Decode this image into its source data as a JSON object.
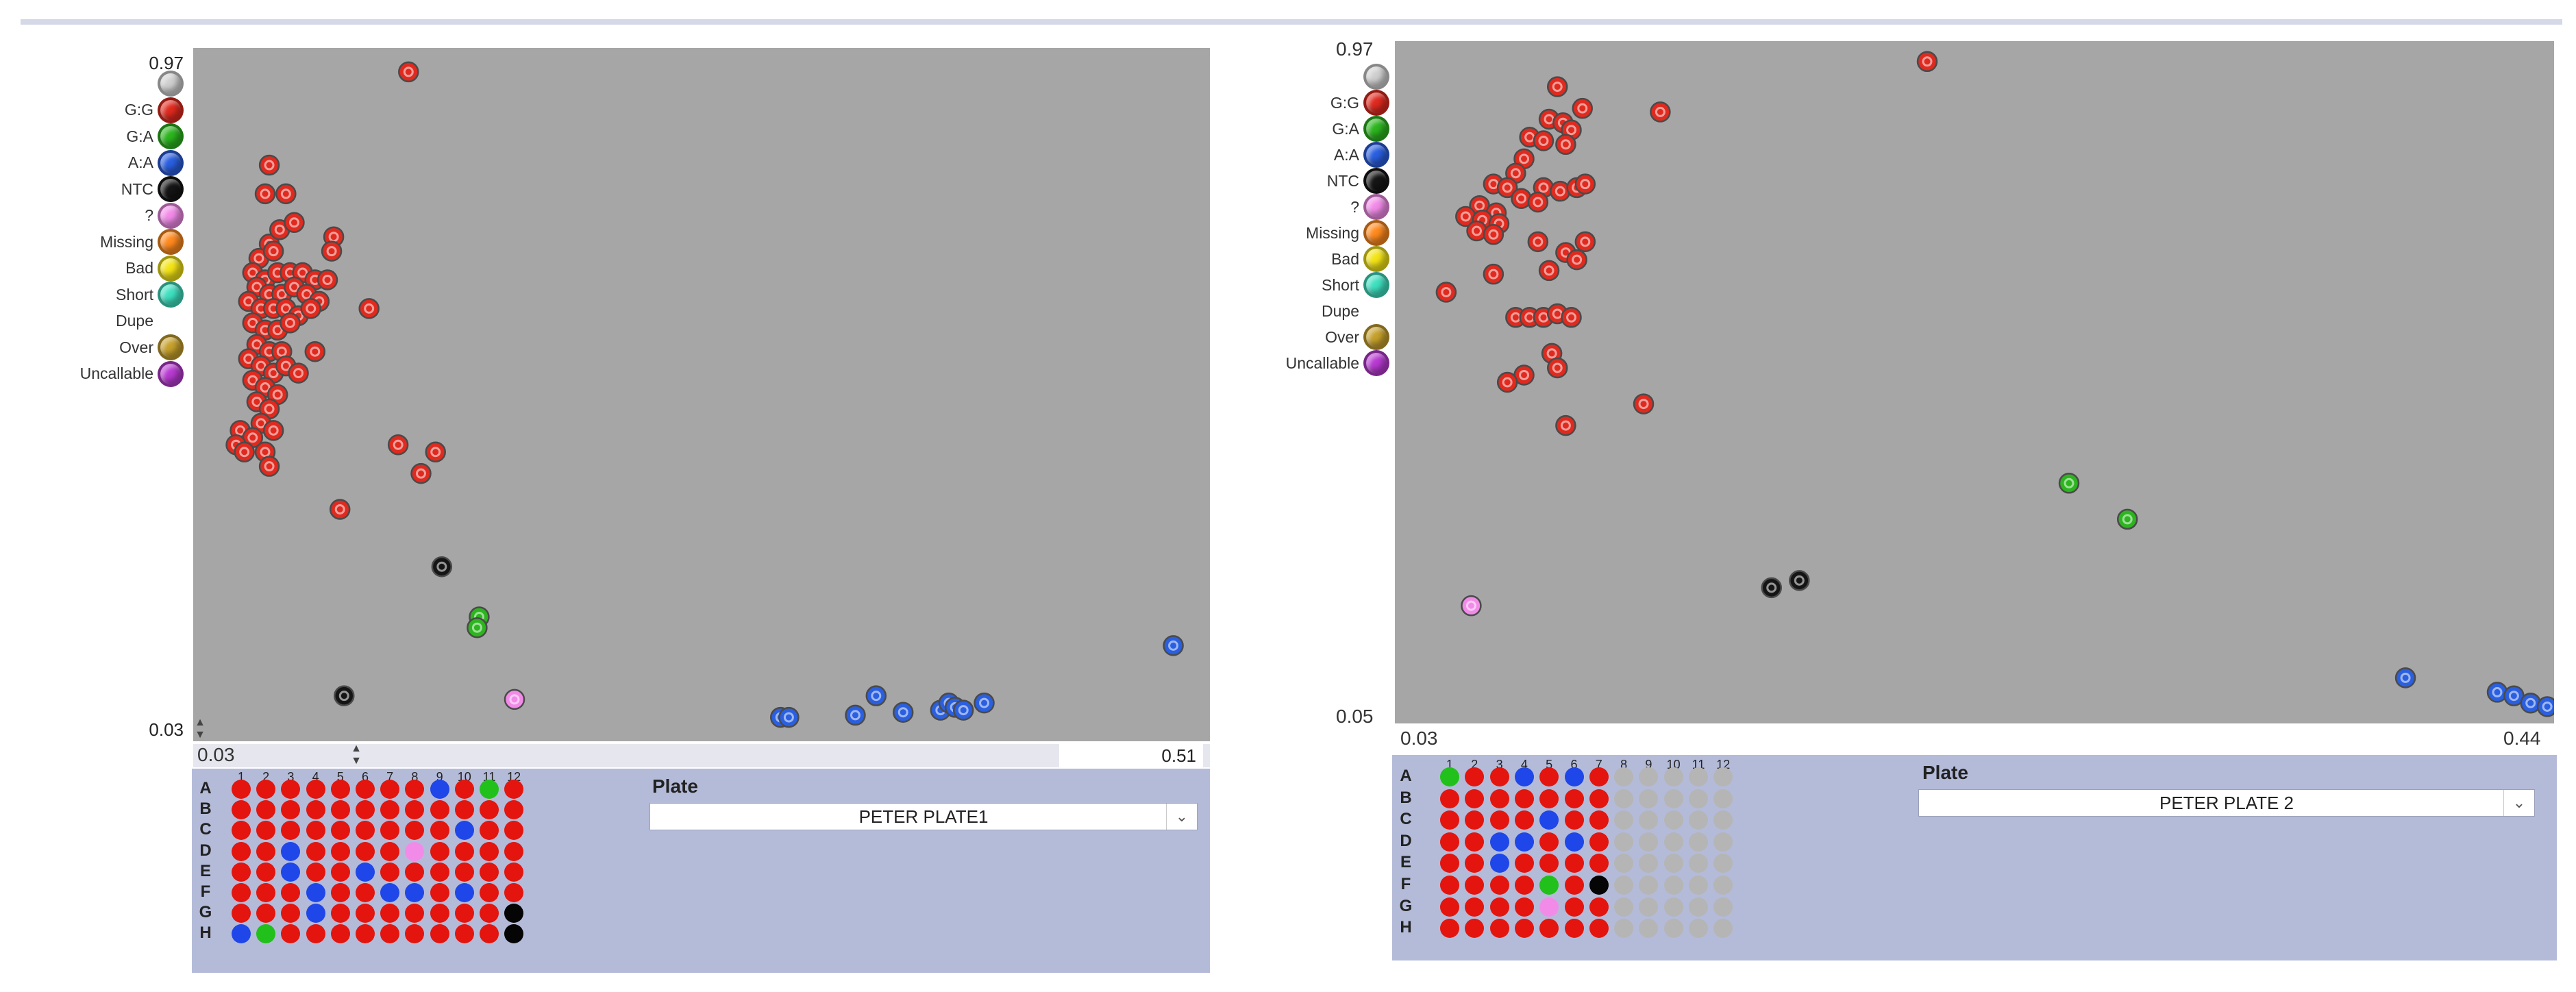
{
  "legend": {
    "labels": [
      "",
      "G:G",
      "G:A",
      "A:A",
      "NTC",
      "?",
      "Missing",
      "Bad",
      "Short",
      "Dupe",
      "Over",
      "Uncallable"
    ],
    "colors": [
      "#cfcfcf",
      "#e02a1f",
      "#2cb51e",
      "#2a5fe0",
      "#151515",
      "#f28be8",
      "#ff8a1e",
      "#f3e416",
      "#3ee0c0",
      "",
      "#c6a02c",
      "#b83ad2"
    ]
  },
  "well_colors": {
    "R": "#e3150e",
    "B": "#1f46e8",
    "G": "#22c01b",
    "K": "#050505",
    "P": "#f28be8",
    "E": "#b5b5b5"
  },
  "panels": [
    {
      "ymax_text": "0.97",
      "ymin_text": "0.03",
      "xmin_text": "0.03",
      "xmax_text": "0.51",
      "plate_label": "Plate",
      "plate_value": "PETER PLATE1",
      "plate_cols": [
        "1",
        "2",
        "3",
        "4",
        "5",
        "6",
        "7",
        "8",
        "9",
        "10",
        "11",
        "12"
      ],
      "plate_rows": [
        "A",
        "B",
        "C",
        "D",
        "E",
        "F",
        "G",
        "H"
      ],
      "plate_wells": [
        "RRRRRRRRBRGR",
        "RRRRRRRRRRRR",
        "RRRRRRRRRBRR",
        "RRBRRRRPRRRR",
        "RRBRRBRRRRRR",
        "RRRBRRBBRBRR",
        "RRRBRRRRRRRK",
        "BGRRRRRRRRRK"
      ],
      "chart_data": {
        "type": "scatter",
        "xlim": [
          0.03,
          0.51
        ],
        "ylim": [
          0.03,
          0.97
        ],
        "series": [
          {
            "name": "G:G",
            "color": "#e02a1f",
            "points": [
              [
                0.129,
                0.95
              ],
              [
                0.062,
                0.82
              ],
              [
                0.06,
                0.78
              ],
              [
                0.07,
                0.78
              ],
              [
                0.062,
                0.71
              ],
              [
                0.067,
                0.73
              ],
              [
                0.074,
                0.74
              ],
              [
                0.093,
                0.72
              ],
              [
                0.092,
                0.7
              ],
              [
                0.057,
                0.69
              ],
              [
                0.064,
                0.7
              ],
              [
                0.054,
                0.67
              ],
              [
                0.06,
                0.66
              ],
              [
                0.066,
                0.67
              ],
              [
                0.072,
                0.67
              ],
              [
                0.078,
                0.67
              ],
              [
                0.084,
                0.66
              ],
              [
                0.09,
                0.66
              ],
              [
                0.056,
                0.65
              ],
              [
                0.062,
                0.64
              ],
              [
                0.068,
                0.64
              ],
              [
                0.074,
                0.65
              ],
              [
                0.08,
                0.64
              ],
              [
                0.086,
                0.63
              ],
              [
                0.052,
                0.63
              ],
              [
                0.058,
                0.62
              ],
              [
                0.064,
                0.62
              ],
              [
                0.07,
                0.62
              ],
              [
                0.076,
                0.61
              ],
              [
                0.082,
                0.62
              ],
              [
                0.054,
                0.6
              ],
              [
                0.06,
                0.59
              ],
              [
                0.066,
                0.59
              ],
              [
                0.072,
                0.6
              ],
              [
                0.11,
                0.62
              ],
              [
                0.056,
                0.57
              ],
              [
                0.062,
                0.56
              ],
              [
                0.068,
                0.56
              ],
              [
                0.052,
                0.55
              ],
              [
                0.058,
                0.54
              ],
              [
                0.064,
                0.53
              ],
              [
                0.07,
                0.54
              ],
              [
                0.084,
                0.56
              ],
              [
                0.054,
                0.52
              ],
              [
                0.06,
                0.51
              ],
              [
                0.066,
                0.5
              ],
              [
                0.076,
                0.53
              ],
              [
                0.056,
                0.49
              ],
              [
                0.062,
                0.48
              ],
              [
                0.058,
                0.46
              ],
              [
                0.064,
                0.45
              ],
              [
                0.048,
                0.45
              ],
              [
                0.054,
                0.44
              ],
              [
                0.046,
                0.43
              ],
              [
                0.05,
                0.42
              ],
              [
                0.06,
                0.42
              ],
              [
                0.062,
                0.4
              ],
              [
                0.124,
                0.43
              ],
              [
                0.142,
                0.42
              ],
              [
                0.135,
                0.39
              ],
              [
                0.096,
                0.34
              ]
            ]
          },
          {
            "name": "G:A",
            "color": "#2cb51e",
            "points": [
              [
                0.163,
                0.19
              ],
              [
                0.162,
                0.175
              ]
            ]
          },
          {
            "name": "A:A",
            "color": "#2a5fe0",
            "points": [
              [
                0.497,
                0.15
              ],
              [
                0.308,
                0.05
              ],
              [
                0.312,
                0.05
              ],
              [
                0.344,
                0.053
              ],
              [
                0.354,
                0.08
              ],
              [
                0.367,
                0.057
              ],
              [
                0.385,
                0.06
              ],
              [
                0.389,
                0.07
              ],
              [
                0.392,
                0.064
              ],
              [
                0.396,
                0.06
              ],
              [
                0.406,
                0.07
              ]
            ]
          },
          {
            "name": "NTC",
            "color": "#151515",
            "points": [
              [
                0.145,
                0.26
              ],
              [
                0.098,
                0.08
              ]
            ]
          },
          {
            "name": "?",
            "color": "#f28be8",
            "points": [
              [
                0.18,
                0.075
              ]
            ]
          }
        ]
      }
    },
    {
      "ymax_text": "0.97",
      "ymin_text": "0.05",
      "xmin_text": "0.03",
      "xmax_text": "0.44",
      "plate_label": "Plate",
      "plate_value": "PETER PLATE 2",
      "plate_cols": [
        "1",
        "2",
        "3",
        "4",
        "5",
        "6",
        "7",
        "8",
        "9",
        "10",
        "11",
        "12"
      ],
      "plate_rows": [
        "A",
        "B",
        "C",
        "D",
        "E",
        "F",
        "G",
        "H"
      ],
      "plate_wells": [
        "GRRBRBREEEEE",
        "RRRRRRREEEEE",
        "RRRRBRREEEEE",
        "RRBBRBREEEEE",
        "RRBRRRREEEEE",
        "RRRRGRKEEEEE",
        "RRRRPRREEEEE",
        "RRRRRRREEEEE"
      ],
      "chart_data": {
        "type": "scatter",
        "xlim": [
          0.03,
          0.44
        ],
        "ylim": [
          0.05,
          0.97
        ],
        "series": [
          {
            "name": "G:G",
            "color": "#e02a1f",
            "points": [
              [
                0.218,
                0.955
              ],
              [
                0.085,
                0.92
              ],
              [
                0.094,
                0.89
              ],
              [
                0.122,
                0.885
              ],
              [
                0.082,
                0.875
              ],
              [
                0.087,
                0.87
              ],
              [
                0.09,
                0.86
              ],
              [
                0.075,
                0.85
              ],
              [
                0.08,
                0.845
              ],
              [
                0.088,
                0.84
              ],
              [
                0.073,
                0.82
              ],
              [
                0.07,
                0.8
              ],
              [
                0.062,
                0.785
              ],
              [
                0.067,
                0.78
              ],
              [
                0.08,
                0.78
              ],
              [
                0.086,
                0.775
              ],
              [
                0.092,
                0.78
              ],
              [
                0.095,
                0.785
              ],
              [
                0.072,
                0.765
              ],
              [
                0.078,
                0.76
              ],
              [
                0.057,
                0.755
              ],
              [
                0.063,
                0.745
              ],
              [
                0.052,
                0.74
              ],
              [
                0.058,
                0.735
              ],
              [
                0.064,
                0.73
              ],
              [
                0.056,
                0.72
              ],
              [
                0.062,
                0.715
              ],
              [
                0.078,
                0.705
              ],
              [
                0.095,
                0.705
              ],
              [
                0.088,
                0.69
              ],
              [
                0.092,
                0.68
              ],
              [
                0.062,
                0.66
              ],
              [
                0.082,
                0.665
              ],
              [
                0.045,
                0.635
              ],
              [
                0.07,
                0.6
              ],
              [
                0.075,
                0.6
              ],
              [
                0.08,
                0.6
              ],
              [
                0.085,
                0.605
              ],
              [
                0.09,
                0.6
              ],
              [
                0.083,
                0.55
              ],
              [
                0.085,
                0.53
              ],
              [
                0.073,
                0.52
              ],
              [
                0.067,
                0.51
              ],
              [
                0.116,
                0.48
              ],
              [
                0.088,
                0.45
              ]
            ]
          },
          {
            "name": "G:A",
            "color": "#2cb51e",
            "points": [
              [
                0.269,
                0.37
              ],
              [
                0.29,
                0.32
              ]
            ]
          },
          {
            "name": "A:A",
            "color": "#2a5fe0",
            "points": [
              [
                0.39,
                0.1
              ],
              [
                0.423,
                0.08
              ],
              [
                0.429,
                0.075
              ],
              [
                0.435,
                0.065
              ],
              [
                0.441,
                0.06
              ]
            ]
          },
          {
            "name": "NTC",
            "color": "#151515",
            "points": [
              [
                0.162,
                0.225
              ],
              [
                0.172,
                0.235
              ]
            ]
          },
          {
            "name": "?",
            "color": "#f28be8",
            "points": [
              [
                0.054,
                0.2
              ]
            ]
          }
        ]
      }
    }
  ]
}
